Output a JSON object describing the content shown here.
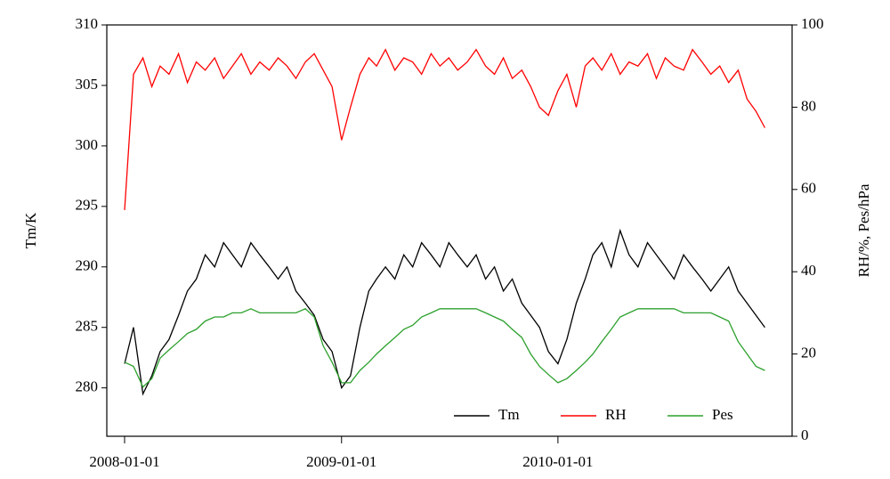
{
  "chart_data": {
    "type": "line",
    "ylabel": "Tm/K",
    "y2label": "RH/%, Pes/hPa",
    "x": [
      "2008-01-01",
      "2008-01-16",
      "2008-02-01",
      "2008-02-16",
      "2008-03-01",
      "2008-03-16",
      "2008-04-01",
      "2008-04-16",
      "2008-05-01",
      "2008-05-16",
      "2008-06-01",
      "2008-06-16",
      "2008-07-01",
      "2008-07-16",
      "2008-08-01",
      "2008-08-16",
      "2008-09-01",
      "2008-09-16",
      "2008-10-01",
      "2008-10-16",
      "2008-11-01",
      "2008-11-16",
      "2008-12-01",
      "2008-12-16",
      "2009-01-01",
      "2009-01-16",
      "2009-02-01",
      "2009-02-16",
      "2009-03-01",
      "2009-03-16",
      "2009-04-01",
      "2009-04-16",
      "2009-05-01",
      "2009-05-16",
      "2009-06-01",
      "2009-06-16",
      "2009-07-01",
      "2009-07-16",
      "2009-08-01",
      "2009-08-16",
      "2009-09-01",
      "2009-09-16",
      "2009-10-01",
      "2009-10-16",
      "2009-11-01",
      "2009-11-16",
      "2009-12-01",
      "2009-12-16",
      "2010-01-01",
      "2010-01-16",
      "2010-02-01",
      "2010-02-16",
      "2010-03-01",
      "2010-03-16",
      "2010-04-01",
      "2010-04-16",
      "2010-05-01",
      "2010-05-16",
      "2010-06-01",
      "2010-06-16",
      "2010-07-01",
      "2010-07-16",
      "2010-08-01",
      "2010-08-16",
      "2010-09-01",
      "2010-09-16",
      "2010-10-01",
      "2010-10-16",
      "2010-11-01",
      "2010-11-16",
      "2010-12-01",
      "2010-12-16"
    ],
    "series": [
      {
        "name": "Tm",
        "color": "#000000",
        "axis": "y",
        "values": [
          282,
          285,
          279.5,
          281,
          283,
          284,
          286,
          288,
          289,
          291,
          290,
          292,
          291,
          290,
          292,
          291,
          290,
          289,
          290,
          288,
          287,
          286,
          284,
          283,
          280,
          281,
          285,
          288,
          289,
          290,
          289,
          291,
          290,
          292,
          291,
          290,
          292,
          291,
          290,
          291,
          289,
          290,
          288,
          289,
          287,
          286,
          285,
          283,
          282,
          284,
          287,
          289,
          291,
          292,
          290,
          293,
          291,
          290,
          292,
          291,
          290,
          289,
          291,
          290,
          289,
          288,
          289,
          290,
          288,
          287,
          286,
          285
        ]
      },
      {
        "name": "RH",
        "color": "#ff0000",
        "axis": "y2",
        "values": [
          55,
          88,
          92,
          85,
          90,
          88,
          93,
          86,
          91,
          89,
          92,
          87,
          90,
          93,
          88,
          91,
          89,
          92,
          90,
          87,
          91,
          93,
          89,
          85,
          72,
          80,
          88,
          92,
          90,
          94,
          89,
          92,
          91,
          88,
          93,
          90,
          92,
          89,
          91,
          94,
          90,
          88,
          92,
          87,
          89,
          85,
          80,
          78,
          84,
          88,
          80,
          90,
          92,
          89,
          93,
          88,
          91,
          90,
          93,
          87,
          92,
          90,
          89,
          94,
          91,
          88,
          90,
          86,
          89,
          82,
          79,
          75
        ]
      },
      {
        "name": "Pes",
        "color": "#2ca02c",
        "axis": "y2",
        "values": [
          18,
          17,
          12,
          14,
          19,
          21,
          23,
          25,
          26,
          28,
          29,
          29,
          30,
          30,
          31,
          30,
          30,
          30,
          30,
          30,
          31,
          29,
          22,
          18,
          13,
          13,
          16,
          18,
          20,
          22,
          24,
          26,
          27,
          29,
          30,
          31,
          31,
          31,
          31,
          31,
          30,
          29,
          28,
          26,
          24,
          20,
          17,
          15,
          13,
          14,
          16,
          18,
          20,
          23,
          26,
          29,
          30,
          31,
          31,
          31,
          31,
          31,
          30,
          30,
          30,
          30,
          29,
          28,
          23,
          20,
          17,
          16
        ]
      }
    ],
    "xlim": [
      "2007-12-02",
      "2011-01-31"
    ],
    "xticks": [
      "2008-01-01",
      "2009-01-01",
      "2010-01-01"
    ],
    "ylim": [
      276,
      310
    ],
    "yticks": [
      280,
      285,
      290,
      295,
      300,
      305,
      310
    ],
    "y2lim": [
      0,
      100
    ],
    "y2ticks": [
      0,
      20,
      40,
      60,
      80,
      100
    ],
    "legend": "lower right"
  }
}
